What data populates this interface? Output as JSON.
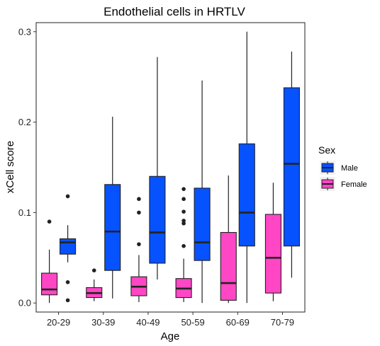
{
  "chart_data": {
    "type": "boxplot",
    "title": "Endothelial cells in HRTLV",
    "xlabel": "Age",
    "ylabel": "xCell score",
    "ylim": [
      -0.01,
      0.31
    ],
    "yticks": [
      0.0,
      0.1,
      0.2,
      0.3
    ],
    "ytick_labels": [
      "0.0",
      "0.1",
      "0.2",
      "0.3"
    ],
    "grid": false,
    "legend_position": "right",
    "categories": [
      "20-29",
      "30-39",
      "40-49",
      "50-59",
      "60-69",
      "70-79"
    ],
    "legend": {
      "title": "Sex",
      "entries": [
        "Male",
        "Female"
      ]
    },
    "colors": {
      "Male": "#0652FF",
      "Female": "#FF46C5"
    },
    "series": [
      {
        "name": "Female",
        "boxes": [
          {
            "category": "20-29",
            "whisker_low": 0.0,
            "q1": 0.009,
            "median": 0.015,
            "q3": 0.033,
            "whisker_high": 0.059,
            "outliers": [
              0.09
            ]
          },
          {
            "category": "30-39",
            "whisker_low": 0.002,
            "q1": 0.006,
            "median": 0.011,
            "q3": 0.017,
            "whisker_high": 0.026,
            "outliers": [
              0.036
            ]
          },
          {
            "category": "40-49",
            "whisker_low": 0.001,
            "q1": 0.008,
            "median": 0.018,
            "q3": 0.029,
            "whisker_high": 0.053,
            "outliers": [
              0.065,
              0.1,
              0.115
            ]
          },
          {
            "category": "50-59",
            "whisker_low": 0.001,
            "q1": 0.006,
            "median": 0.016,
            "q3": 0.027,
            "whisker_high": 0.049,
            "outliers": [
              0.063,
              0.088,
              0.091,
              0.101,
              0.115,
              0.126
            ]
          },
          {
            "category": "60-69",
            "whisker_low": 0.0,
            "q1": 0.003,
            "median": 0.022,
            "q3": 0.078,
            "whisker_high": 0.141,
            "outliers": []
          },
          {
            "category": "70-79",
            "whisker_low": 0.002,
            "q1": 0.011,
            "median": 0.05,
            "q3": 0.098,
            "whisker_high": 0.133,
            "outliers": []
          }
        ]
      },
      {
        "name": "Male",
        "boxes": [
          {
            "category": "20-29",
            "whisker_low": 0.045,
            "q1": 0.054,
            "median": 0.067,
            "q3": 0.071,
            "whisker_high": 0.086,
            "outliers": [
              0.003,
              0.023,
              0.118
            ]
          },
          {
            "category": "30-39",
            "whisker_low": 0.005,
            "q1": 0.036,
            "median": 0.079,
            "q3": 0.131,
            "whisker_high": 0.206,
            "outliers": []
          },
          {
            "category": "40-49",
            "whisker_low": 0.026,
            "q1": 0.044,
            "median": 0.078,
            "q3": 0.14,
            "whisker_high": 0.272,
            "outliers": []
          },
          {
            "category": "50-59",
            "whisker_low": 0.0,
            "q1": 0.047,
            "median": 0.067,
            "q3": 0.127,
            "whisker_high": 0.246,
            "outliers": []
          },
          {
            "category": "60-69",
            "whisker_low": 0.0,
            "q1": 0.063,
            "median": 0.1,
            "q3": 0.176,
            "whisker_high": 0.3,
            "outliers": []
          },
          {
            "category": "70-79",
            "whisker_low": 0.028,
            "q1": 0.063,
            "median": 0.154,
            "q3": 0.238,
            "whisker_high": 0.278,
            "outliers": []
          }
        ]
      }
    ]
  }
}
